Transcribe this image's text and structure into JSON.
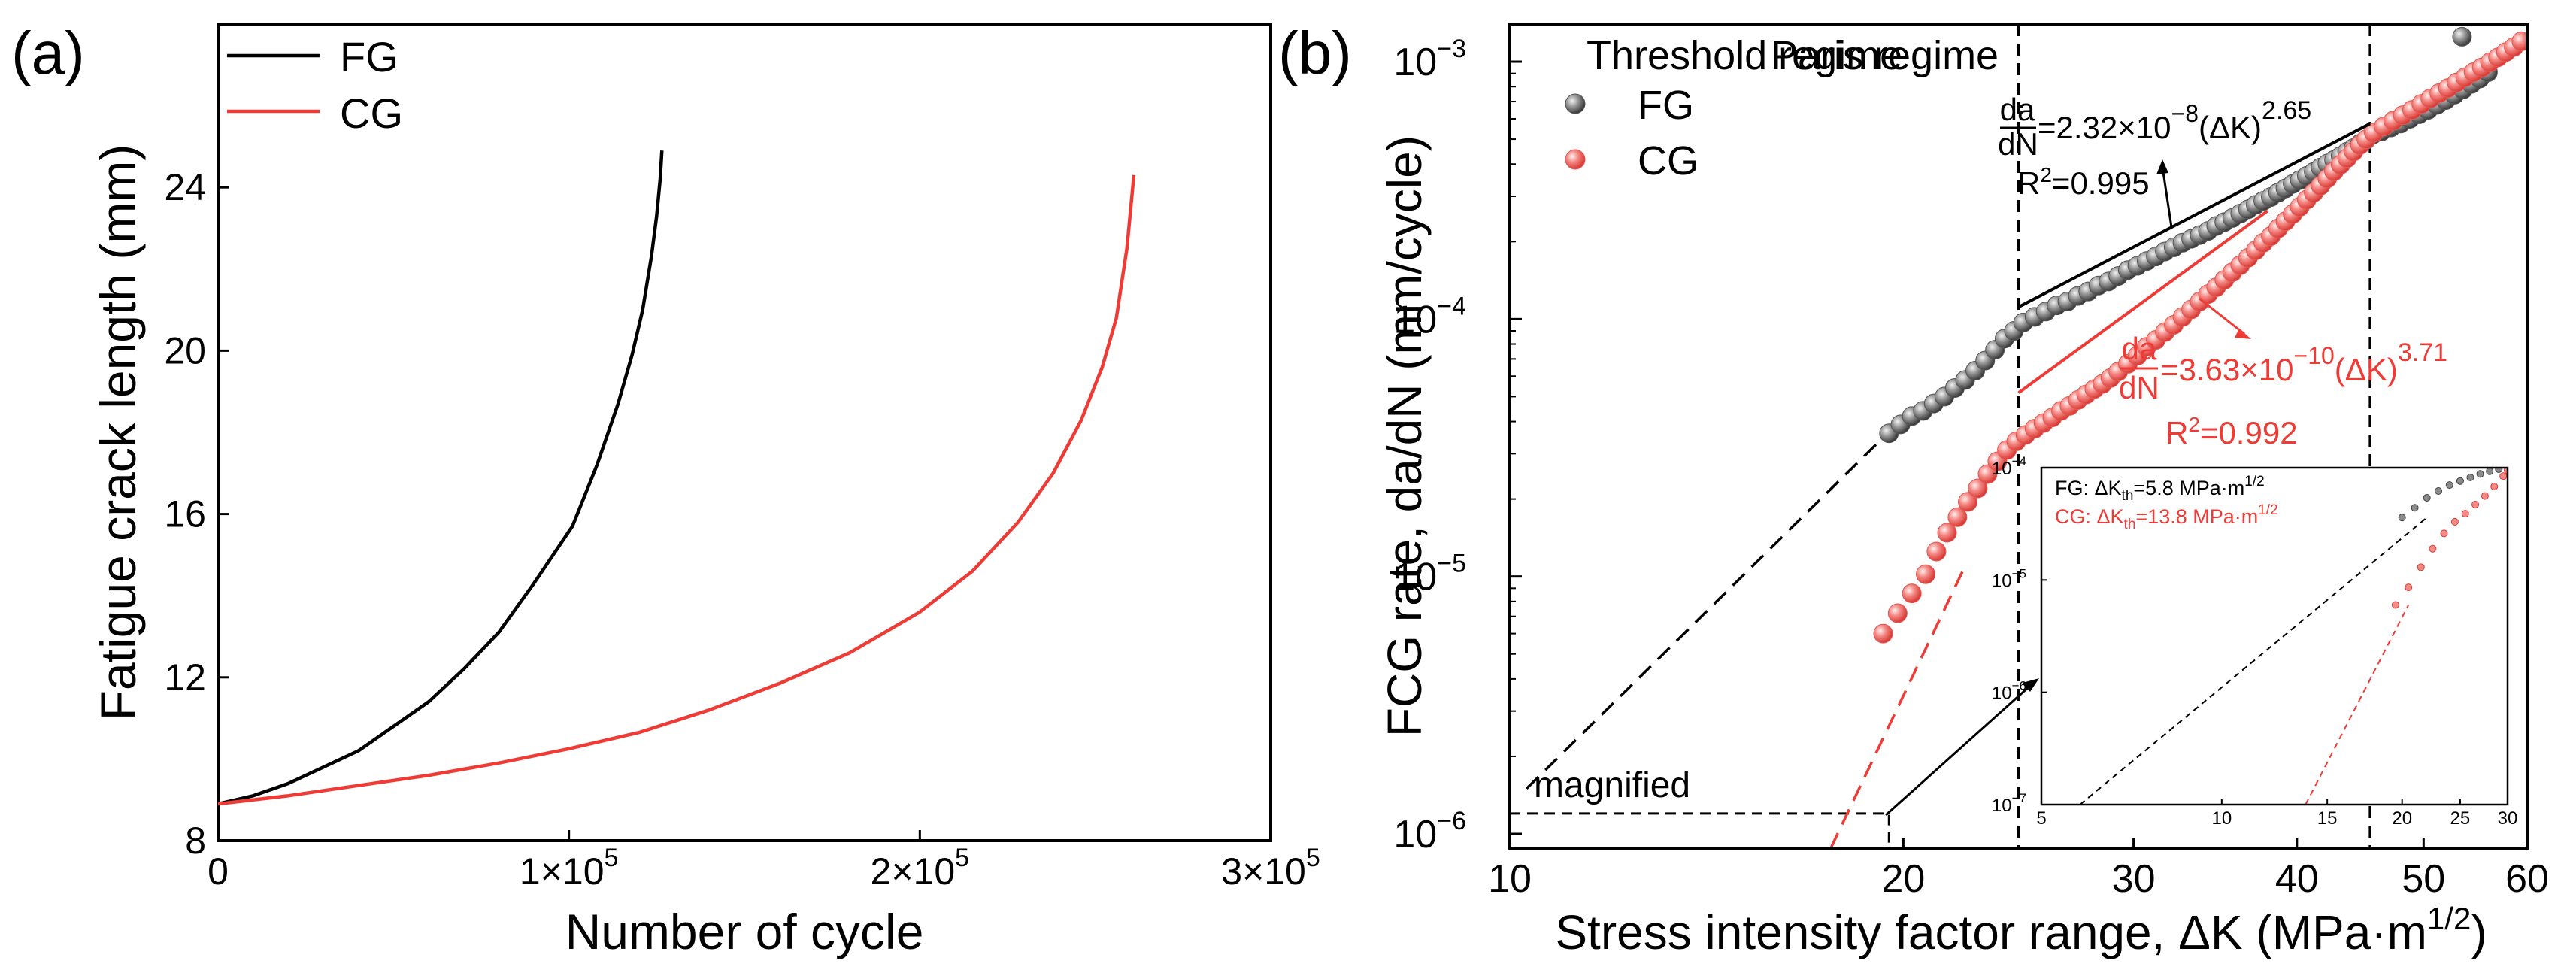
{
  "colors": {
    "fg": "#000000",
    "cg": "#ef3b36",
    "fg_marker": "#6e6e6e",
    "cg_marker": "#f48a86",
    "axis": "#000000"
  },
  "chart_data": [
    {
      "type": "line",
      "panel_label": "(a)",
      "xlabel": "Number of cycle",
      "ylabel": "Fatigue crack length (mm)",
      "xlim": [
        0,
        300000
      ],
      "ylim": [
        8,
        28
      ],
      "xticks": [
        {
          "value": 0,
          "label": "0"
        },
        {
          "value": 100000,
          "label": "1×10",
          "sup": "5"
        },
        {
          "value": 200000,
          "label": "2×10",
          "sup": "5"
        },
        {
          "value": 300000,
          "label": "3×10",
          "sup": "5"
        }
      ],
      "yticks": [
        {
          "value": 8,
          "label": "8"
        },
        {
          "value": 12,
          "label": "12"
        },
        {
          "value": 16,
          "label": "16"
        },
        {
          "value": 20,
          "label": "20"
        },
        {
          "value": 24,
          "label": "24"
        }
      ],
      "legend": {
        "position": "top-left",
        "entries": [
          "FG",
          "CG"
        ]
      },
      "series": [
        {
          "name": "FG",
          "color": "#000000",
          "x": [
            0,
            10000,
            20000,
            30000,
            40000,
            50000,
            60000,
            70000,
            80000,
            90000,
            101000,
            108000,
            114000,
            118000,
            121000,
            123500,
            125000,
            126000,
            126500
          ],
          "y": [
            8.9,
            9.1,
            9.4,
            9.8,
            10.2,
            10.8,
            11.4,
            12.2,
            13.1,
            14.3,
            15.7,
            17.2,
            18.7,
            19.9,
            21.0,
            22.3,
            23.3,
            24.2,
            24.9
          ]
        },
        {
          "name": "CG",
          "color": "#ef3b36",
          "x": [
            0,
            20000,
            40000,
            60000,
            80000,
            100000,
            120000,
            140000,
            160000,
            180000,
            200000,
            215000,
            228000,
            238000,
            246000,
            252000,
            256000,
            259000,
            261000
          ],
          "y": [
            8.9,
            9.1,
            9.35,
            9.6,
            9.9,
            10.25,
            10.65,
            11.2,
            11.85,
            12.6,
            13.6,
            14.6,
            15.8,
            17.0,
            18.3,
            19.6,
            20.8,
            22.5,
            24.3
          ]
        }
      ]
    },
    {
      "type": "scatter",
      "panel_label": "(b)",
      "xlabel": "Stress intensity factor range, ΔK (MPa·m",
      "xlabel_sup": "1/2",
      "xlabel_close": ")",
      "ylabel": "FCG rate, da/dN (mm/cycle)",
      "xscale": "log",
      "yscale": "log",
      "xlim": [
        10,
        60
      ],
      "ylim": [
        8.8e-07,
        0.0014
      ],
      "xticks": [
        10,
        20,
        30,
        40,
        50,
        60
      ],
      "yticks": [
        {
          "value": 1e-06,
          "base": "10",
          "exp": "−6"
        },
        {
          "value": 1e-05,
          "base": "10",
          "exp": "−5"
        },
        {
          "value": 0.0001,
          "base": "10",
          "exp": "−4"
        },
        {
          "value": 0.001,
          "base": "10",
          "exp": "−3"
        }
      ],
      "legend": {
        "position": "top-left",
        "entries": [
          "FG",
          "CG"
        ]
      },
      "regime_lines_dK": [
        24.5,
        45.5
      ],
      "regimes": [
        "Threshold regime",
        "Paris regime"
      ],
      "magnified_label": "magnified",
      "magnified_box": {
        "x": [
          10,
          19.5
        ],
        "y": [
          8.8e-07,
          1.2e-06
        ]
      },
      "fits": [
        {
          "name": "FG",
          "C": 2.32e-08,
          "m": 2.65,
          "dK_range": [
            24.5,
            45.5
          ],
          "eq_lhs_top": "da",
          "eq_lhs_bottom": "dN",
          "eq_rhs": "=2.32×10",
          "eq_exp": "−8",
          "eq_mid": "(ΔK)",
          "eq_m": "2.65",
          "r2_label": "R",
          "r2_sup": "2",
          "r2_value": "=0.995"
        },
        {
          "name": "CG",
          "C": 3.63e-10,
          "m": 3.71,
          "dK_range": [
            24.5,
            38
          ],
          "eq_lhs_top": "da",
          "eq_lhs_bottom": "dN",
          "eq_rhs": "=3.63×10",
          "eq_exp": "−10",
          "eq_mid": "(ΔK)",
          "eq_m": "3.71",
          "r2_label": "R",
          "r2_sup": "2",
          "r2_value": "=0.992"
        }
      ],
      "extrapolations": [
        {
          "name": "FG",
          "points": [
            [
              10.3,
              1.5e-06
            ],
            [
              19.5,
              3.65e-05
            ]
          ]
        },
        {
          "name": "CG",
          "points": [
            [
              17.6,
              8.8e-07
            ],
            [
              22.3,
              1.1e-05
            ]
          ]
        }
      ],
      "series": [
        {
          "name": "FG",
          "dK": [
            19.5,
            19.9,
            20.3,
            20.7,
            21.1,
            21.5,
            21.9,
            22.3,
            22.7,
            23.1,
            23.5,
            23.9,
            24.3,
            24.7,
            25.2,
            25.7,
            26.2,
            26.7,
            27.2,
            27.7,
            28.2,
            28.7,
            29.2,
            29.7,
            30.2,
            30.7,
            31.2,
            31.7,
            32.2,
            32.7,
            33.2,
            33.7,
            34.2,
            34.7,
            35.2,
            35.7,
            36.2,
            36.7,
            37.2,
            37.7,
            38.2,
            38.7,
            39.2,
            39.7,
            40.2,
            40.7,
            41.2,
            41.7,
            42.2,
            42.7,
            43.2,
            43.7,
            44.2,
            44.7,
            45.2,
            45.7,
            46.4,
            47.2,
            48.0,
            48.8,
            49.6,
            50.4,
            51.2,
            52.0,
            52.8,
            53.6,
            54.4,
            55.2,
            56.0,
            53.5,
            55.5,
            57.5
          ],
          "rate": [
            3.6e-05,
            3.9e-05,
            4.2e-05,
            4.4e-05,
            4.7e-05,
            5e-05,
            5.4e-05,
            5.8e-05,
            6.3e-05,
            6.9e-05,
            7.6e-05,
            8.4e-05,
            9e-05,
            9.7e-05,
            0.000102,
            0.000107,
            0.000113,
            0.000117,
            0.000123,
            0.000128,
            0.000135,
            0.00014,
            0.000147,
            0.000155,
            0.000161,
            0.000168,
            0.000175,
            0.000183,
            0.00019,
            0.000198,
            0.000205,
            0.000212,
            0.00022,
            0.00023,
            0.000238,
            0.000247,
            0.000257,
            0.000267,
            0.000278,
            0.000288,
            0.000298,
            0.00031,
            0.000322,
            0.000335,
            0.000347,
            0.00036,
            0.000373,
            0.000388,
            0.000402,
            0.000415,
            0.00043,
            0.000447,
            0.000462,
            0.00048,
            0.000498,
            0.00052,
            0.000535,
            0.000555,
            0.000575,
            0.0006,
            0.000625,
            0.00065,
            0.00068,
            0.00071,
            0.000745,
            0.00078,
            0.00082,
            0.00086,
            0.00091,
            0.00125,
            0.00155,
            0.00175
          ]
        },
        {
          "name": "CG",
          "dK": [
            19.3,
            19.8,
            20.3,
            20.8,
            21.2,
            21.6,
            22.0,
            22.4,
            22.8,
            23.2,
            23.6,
            24.0,
            24.4,
            24.8,
            25.2,
            25.6,
            26.0,
            26.4,
            26.8,
            27.2,
            27.6,
            28.0,
            28.4,
            28.8,
            29.2,
            29.7,
            30.2,
            30.7,
            31.2,
            31.7,
            32.2,
            32.7,
            33.2,
            33.7,
            34.2,
            34.7,
            35.2,
            35.7,
            36.2,
            36.7,
            37.2,
            37.7,
            38.2,
            38.7,
            39.2,
            39.7,
            40.2,
            40.7,
            41.2,
            41.7,
            42.2,
            42.7,
            43.2,
            43.7,
            44.2,
            44.7,
            45.2,
            45.8,
            46.6,
            47.4,
            48.2,
            49.0,
            49.8,
            50.6,
            51.4,
            52.2,
            53.0,
            53.8,
            54.6,
            55.4,
            56.2,
            57.0,
            57.8,
            58.6,
            59.4
          ],
          "rate": [
            6e-06,
            7.2e-06,
            8.6e-06,
            1.02e-05,
            1.25e-05,
            1.48e-05,
            1.7e-05,
            1.95e-05,
            2.2e-05,
            2.5e-05,
            2.8e-05,
            3.1e-05,
            3.35e-05,
            3.55e-05,
            3.75e-05,
            3.95e-05,
            4.15e-05,
            4.4e-05,
            4.6e-05,
            4.85e-05,
            5.1e-05,
            5.35e-05,
            5.6e-05,
            5.9e-05,
            6.25e-05,
            6.7e-05,
            7.2e-05,
            7.8e-05,
            8.3e-05,
            8.9e-05,
            9.5e-05,
            0.000102,
            0.000109,
            0.000117,
            0.000125,
            0.000133,
            0.000142,
            0.000152,
            0.000162,
            0.000173,
            0.000185,
            0.000198,
            0.00021,
            0.000225,
            0.00024,
            0.000256,
            0.000273,
            0.000291,
            0.00031,
            0.00033,
            0.000352,
            0.000375,
            0.000398,
            0.000422,
            0.000448,
            0.000475,
            0.0005,
            0.00053,
            0.00056,
            0.00059,
            0.00062,
            0.00065,
            0.000685,
            0.00072,
            0.000755,
            0.00079,
            0.00083,
            0.00087,
            0.00091,
            0.00095,
            0.000995,
            0.00104,
            0.00109,
            0.00114,
            0.0012
          ]
        }
      ]
    },
    {
      "type": "scatter",
      "panel_label": "inset",
      "xscale": "log",
      "yscale": "log",
      "xlim": [
        5,
        30
      ],
      "ylim": [
        1e-07,
        0.0001
      ],
      "xticks": [
        5,
        10,
        15,
        20,
        25,
        30
      ],
      "yticks": [
        {
          "value": 1e-07,
          "base": "10",
          "exp": "−7"
        },
        {
          "value": 1e-06,
          "base": "10",
          "exp": "−6"
        },
        {
          "value": 1e-05,
          "base": "10",
          "exp": "−5"
        },
        {
          "value": 0.0001,
          "base": "10",
          "exp": "−4"
        }
      ],
      "annotations": [
        {
          "series": "FG",
          "prefix": "FG: ΔK",
          "sub": "th",
          "middle": "=5.8 MPa·m",
          "sup": "1/2"
        },
        {
          "series": "CG",
          "prefix": "CG: ΔK",
          "sub": "th",
          "middle": "=13.8 MPa·m",
          "sup": "1/2"
        }
      ],
      "extrapolations": [
        {
          "name": "FG",
          "points": [
            [
              5.8,
              1e-07
            ],
            [
              22,
              3.6e-05
            ]
          ]
        },
        {
          "name": "CG",
          "points": [
            [
              13.8,
              1e-07
            ],
            [
              20.5,
              6e-06
            ]
          ]
        }
      ],
      "series": [
        {
          "name": "FG",
          "dK": [
            20.0,
            21.0,
            22.0,
            23.0,
            24.0,
            25.0,
            26.0,
            27.0,
            28.0,
            29.0,
            30.0
          ],
          "rate": [
            3.6e-05,
            4.4e-05,
            5.4e-05,
            6.2e-05,
            7e-05,
            7.6e-05,
            8.2e-05,
            8.8e-05,
            9.3e-05,
            9.7e-05,
            0.0001
          ]
        },
        {
          "name": "CG",
          "dK": [
            19.5,
            20.5,
            21.5,
            22.5,
            23.5,
            24.5,
            25.5,
            26.5,
            27.5,
            28.5,
            29.5,
            30.0
          ],
          "rate": [
            6e-06,
            8.6e-06,
            1.3e-05,
            1.9e-05,
            2.6e-05,
            3.3e-05,
            3.9e-05,
            4.7e-05,
            5.6e-05,
            6.8e-05,
            8.4e-05,
            9.5e-05
          ]
        }
      ]
    }
  ]
}
